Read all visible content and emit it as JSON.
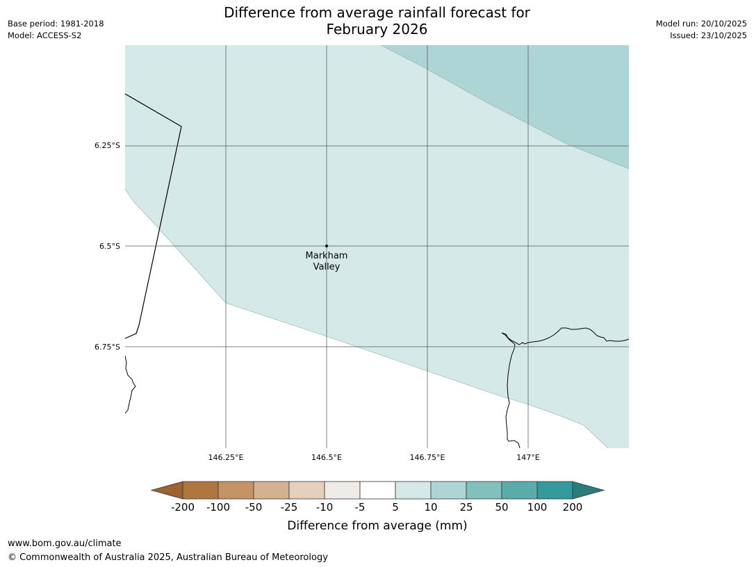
{
  "header": {
    "title_line1": "Difference from average rainfall forecast for",
    "title_line2": "February 2026",
    "base_period": "Base period: 1981-2018",
    "model": "Model: ACCESS-S2",
    "model_run": "Model run: 20/10/2025",
    "issued": "Issued: 23/10/2025"
  },
  "map": {
    "lon_ticks": [
      {
        "value": 146.25,
        "label": "146.25°E"
      },
      {
        "value": 146.5,
        "label": "146.5°E"
      },
      {
        "value": 146.75,
        "label": "146.75°E"
      },
      {
        "value": 147.0,
        "label": "147°E"
      }
    ],
    "lat_ticks": [
      {
        "value": -6.25,
        "label": "6.25°S"
      },
      {
        "value": -6.5,
        "label": "6.5°S"
      },
      {
        "value": -6.75,
        "label": "6.75°S"
      }
    ],
    "place": {
      "name_line1": "Markham",
      "name_line2": "Valley",
      "lon": 146.5,
      "lat": -6.5
    },
    "zones": [
      {
        "category": "5 to 10",
        "color": "#d5e9e8"
      },
      {
        "category": "10 to 25",
        "color": "#aed5d5"
      }
    ],
    "grid": true,
    "land_color": "#ffffff"
  },
  "colorbar": {
    "title": "Difference from average (mm)",
    "ticks": [
      "-200",
      "-100",
      "-50",
      "-25",
      "-10",
      "-5",
      "5",
      "10",
      "25",
      "50",
      "100",
      "200"
    ],
    "colors": [
      "#9b6332",
      "#b0763f",
      "#c49467",
      "#d4b190",
      "#e5d0bd",
      "#efebe8",
      "#ffffff",
      "#d5e9e8",
      "#aed5d5",
      "#82c0bd",
      "#5aacaa",
      "#33999a",
      "#2a7b7a"
    ]
  },
  "footer": {
    "url": "www.bom.gov.au/climate",
    "copyright": "© Commonwealth of Australia 2025, Australian Bureau of Meteorology"
  }
}
